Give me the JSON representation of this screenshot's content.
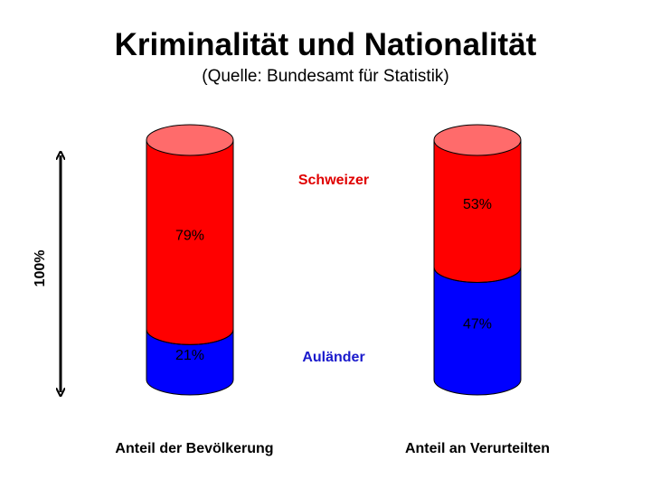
{
  "title": "Kriminalität und Nationalität",
  "subtitle": "(Quelle: Bundesamt für Statistik)",
  "colors": {
    "schweizer": "#ff0000",
    "schweizer_top": "#ff6b6b",
    "auslaender": "#0000ff",
    "text_schweizer": "#e00000",
    "text_auslaender": "#1a1acc"
  },
  "chart_data": {
    "type": "bar",
    "stacked": true,
    "categories": [
      "Anteil der Bevölkerung",
      "Anteil an Verurteilten"
    ],
    "series": [
      {
        "name": "Auländer",
        "values": [
          21,
          47
        ],
        "labels": [
          "21%",
          "47%"
        ]
      },
      {
        "name": "Schweizer",
        "values": [
          79,
          53
        ],
        "labels": [
          "79%",
          "53%"
        ]
      }
    ],
    "ylim": [
      0,
      100
    ],
    "ylabel": "100%",
    "grid": false
  }
}
